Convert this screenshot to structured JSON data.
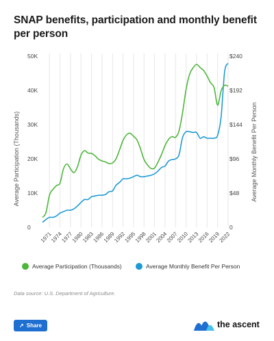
{
  "page": {
    "title": "SNAP benefits, participation and monthly benefit per person",
    "source": "Data source: U.S. Department of Agriculture.",
    "share_label": "Share",
    "brand_name": "the ascent"
  },
  "colors": {
    "participation": "#4cb53a",
    "benefit": "#1c9ad6",
    "brand_blue": "#1f6fd1"
  },
  "chart_data": {
    "type": "line",
    "title": "SNAP benefits, participation and monthly benefit per person",
    "xlabel": "",
    "ylabel_left": "Average Participation (Thousands)",
    "ylabel_right": "Average Monthly Benefit Per Person",
    "ylim_left": [
      0,
      50000
    ],
    "ylim_right": [
      0,
      240
    ],
    "yticks_left": [
      {
        "value": 0,
        "label": "0"
      },
      {
        "value": 10000,
        "label": "10K"
      },
      {
        "value": 20000,
        "label": "20K"
      },
      {
        "value": 30000,
        "label": "30K"
      },
      {
        "value": 40000,
        "label": "40K"
      },
      {
        "value": 50000,
        "label": "50K"
      }
    ],
    "yticks_right": [
      {
        "value": 0,
        "label": "0"
      },
      {
        "value": 48,
        "label": "$48"
      },
      {
        "value": 96,
        "label": "$96"
      },
      {
        "value": 144,
        "label": "$144"
      },
      {
        "value": 192,
        "label": "$192"
      },
      {
        "value": 240,
        "label": "$240"
      }
    ],
    "xticks": [
      "1971",
      "1974",
      "1977",
      "1980",
      "1983",
      "1986",
      "1989",
      "1992",
      "1995",
      "1998",
      "2001",
      "2004",
      "2007",
      "2010",
      "2013",
      "2016",
      "2019",
      "2022"
    ],
    "grid": "vertical",
    "legend_position": "bottom",
    "x": [
      1969,
      1970,
      1971,
      1972,
      1973,
      1974,
      1975,
      1976,
      1977,
      1978,
      1979,
      1980,
      1981,
      1982,
      1983,
      1984,
      1985,
      1986,
      1987,
      1988,
      1989,
      1990,
      1991,
      1992,
      1993,
      1994,
      1995,
      1996,
      1997,
      1998,
      1999,
      2000,
      2001,
      2002,
      2003,
      2004,
      2005,
      2006,
      2007,
      2008,
      2009,
      2010,
      2011,
      2012,
      2013,
      2014,
      2015,
      2016,
      2017,
      2018,
      2019,
      2020,
      2021,
      2022
    ],
    "series": [
      {
        "name": "Average Participation (Thousands)",
        "axis": "left",
        "values": [
          2900,
          4300,
          9400,
          11100,
          12200,
          12900,
          17100,
          18500,
          17100,
          16000,
          17700,
          21100,
          22400,
          21700,
          21600,
          20900,
          19900,
          19400,
          19100,
          18600,
          18800,
          20000,
          22600,
          25400,
          27000,
          27500,
          26600,
          25500,
          22900,
          19800,
          18200,
          17200,
          17300,
          19100,
          21300,
          23900,
          25700,
          26500,
          26300,
          28200,
          33500,
          40300,
          44700,
          46600,
          47600,
          46700,
          45800,
          44200,
          42200,
          40800,
          35700,
          39900,
          41500,
          41200
        ]
      },
      {
        "name": "Average Monthly Benefit Per Person",
        "axis": "left_scaled_to_right",
        "values": [
          7,
          11,
          14,
          14,
          16,
          20,
          22,
          24,
          24,
          26,
          30,
          35,
          39,
          39,
          43,
          44,
          45,
          45,
          46,
          50,
          51,
          59,
          63,
          68,
          68,
          69,
          71,
          73,
          71,
          71,
          72,
          73,
          75,
          79,
          84,
          86,
          93,
          95,
          96,
          102,
          126,
          134,
          134,
          133,
          133,
          125,
          127,
          125,
          125,
          125,
          129,
          155,
          218,
          230
        ]
      }
    ]
  }
}
